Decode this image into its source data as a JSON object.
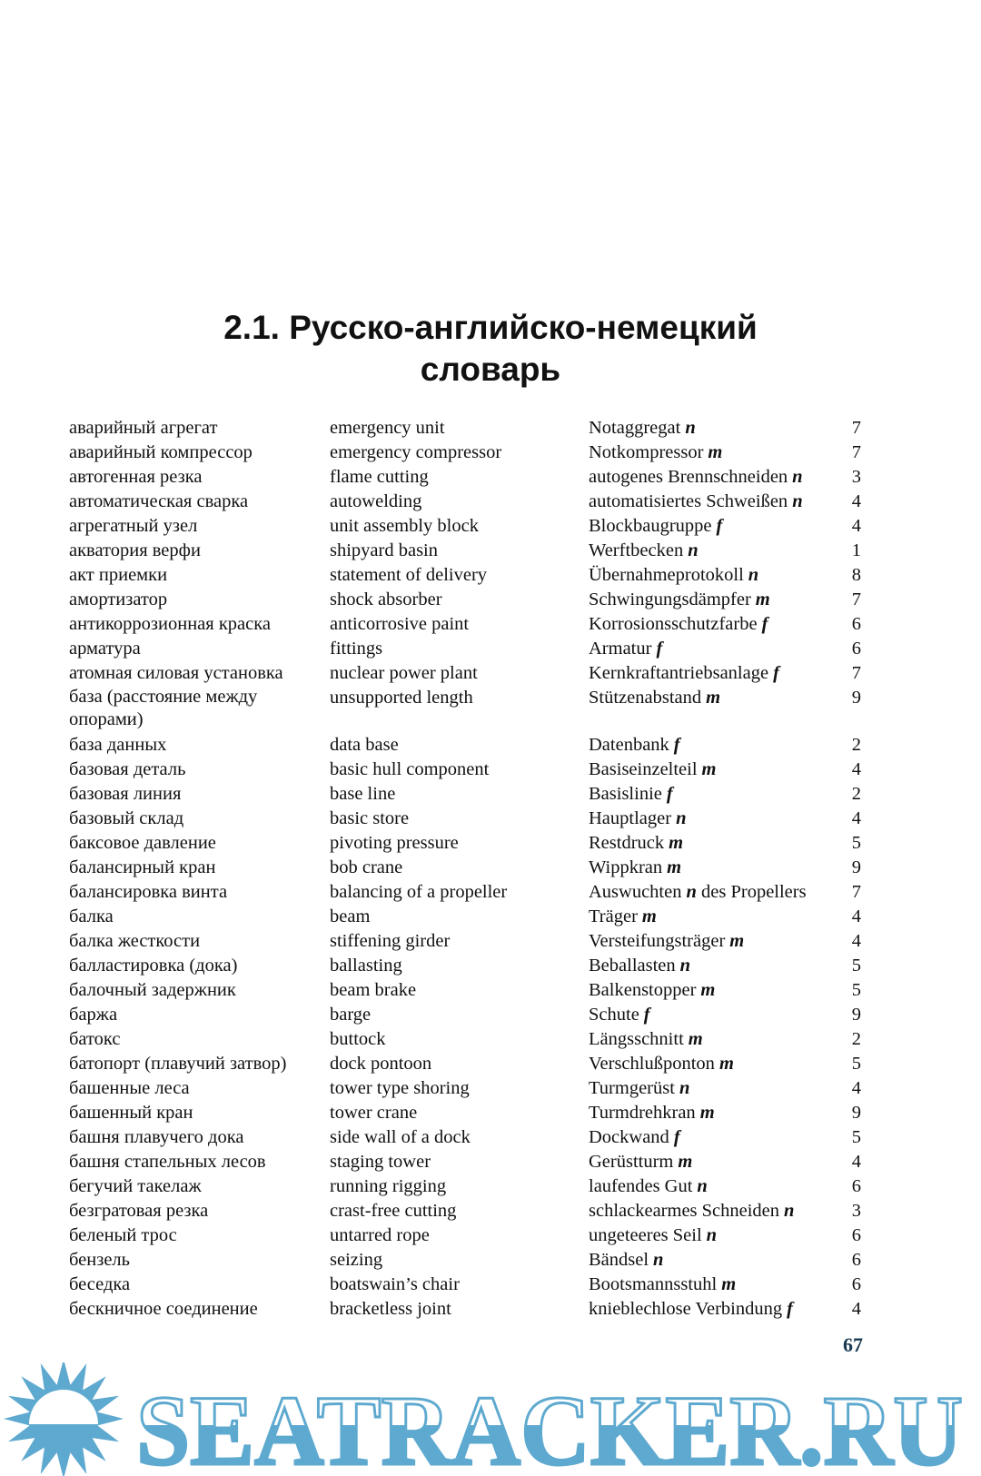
{
  "header": {
    "title_line1": "2.1. Русско-английско-немецкий",
    "title_line2": "словарь"
  },
  "entries": [
    {
      "ru": "аварийный агрегат",
      "en": "emergency unit",
      "de": "Notaggregat",
      "g": "n",
      "num": "7"
    },
    {
      "ru": "аварийный компрессор",
      "en": "emergency compressor",
      "de": "Notkompressor",
      "g": "m",
      "num": "7"
    },
    {
      "ru": "автогенная резка",
      "en": "flame cutting",
      "de": "autogenes Brennschneiden",
      "g": "n",
      "num": "3"
    },
    {
      "ru": "автоматическая сварка",
      "en": "autowelding",
      "de": "automatisiertes Schweißen",
      "g": "n",
      "num": "4"
    },
    {
      "ru": "агрегатный узел",
      "en": "unit assembly block",
      "de": "Blockbaugruppe",
      "g": "f",
      "num": "4"
    },
    {
      "ru": "акватория верфи",
      "en": "shipyard basin",
      "de": "Werftbecken",
      "g": "n",
      "num": "1"
    },
    {
      "ru": "акт приемки",
      "en": "statement of delivery",
      "de": "Übernahmeprotokoll",
      "g": "n",
      "num": "8"
    },
    {
      "ru": "амортизатор",
      "en": "shock absorber",
      "de": "Schwingungsdämpfer",
      "g": "m",
      "num": "7"
    },
    {
      "ru": "антикоррозионная краска",
      "en": "anticorrosive paint",
      "de": "Korrosionsschutzfarbe",
      "g": "f",
      "num": "6"
    },
    {
      "ru": "арматура",
      "en": "fittings",
      "de": "Armatur",
      "g": "f",
      "num": "6"
    },
    {
      "ru": "атомная силовая установка",
      "en": "nuclear power plant",
      "de": "Kernkraftantriebsanlage",
      "g": "f",
      "num": "7"
    },
    {
      "ru": "база (расстояние между опорами)",
      "en": "unsupported length",
      "de": "Stützenabstand",
      "g": "m",
      "num": "9"
    },
    {
      "ru": "база данных",
      "en": "data base",
      "de": "Datenbank",
      "g": "f",
      "num": "2"
    },
    {
      "ru": "базовая деталь",
      "en": "basic hull component",
      "de": "Basiseinzelteil",
      "g": "m",
      "num": "4"
    },
    {
      "ru": "базовая линия",
      "en": "base line",
      "de": "Basislinie",
      "g": "f",
      "num": "2"
    },
    {
      "ru": "базовый склад",
      "en": "basic store",
      "de": "Hauptlager",
      "g": "n",
      "num": "4"
    },
    {
      "ru": "баксовое давление",
      "en": "pivoting pressure",
      "de": "Restdruck",
      "g": "m",
      "num": "5"
    },
    {
      "ru": "балансирный кран",
      "en": "bob crane",
      "de": "Wippkran",
      "g": "m",
      "num": "9"
    },
    {
      "ru": "балансировка винта",
      "en": "balancing of a propeller",
      "de": "Auswuchten",
      "g": "n",
      "de_suffix": "des Propellers",
      "num": "7"
    },
    {
      "ru": "балка",
      "en": "beam",
      "de": "Träger",
      "g": "m",
      "num": "4"
    },
    {
      "ru": "балка жесткости",
      "en": "stiffening girder",
      "de": "Versteifungsträger",
      "g": "m",
      "num": "4"
    },
    {
      "ru": "балластировка (дока)",
      "en": "ballasting",
      "de": "Beballasten",
      "g": "n",
      "num": "5"
    },
    {
      "ru": "балочный задержник",
      "en": "beam brake",
      "de": "Balkenstopper",
      "g": "m",
      "num": "5"
    },
    {
      "ru": "баржа",
      "en": "barge",
      "de": "Schute",
      "g": "f",
      "num": "9"
    },
    {
      "ru": "батокс",
      "en": "buttock",
      "de": "Längsschnitt",
      "g": "m",
      "num": "2"
    },
    {
      "ru": "батопорт (плавучий затвор)",
      "en": "dock pontoon",
      "de": "Verschlußponton",
      "g": "m",
      "num": "5"
    },
    {
      "ru": "башенные леса",
      "en": "tower type shoring",
      "de": "Turmgerüst",
      "g": "n",
      "num": "4"
    },
    {
      "ru": "башенный кран",
      "en": "tower crane",
      "de": "Turmdrehkran",
      "g": "m",
      "num": "9"
    },
    {
      "ru": "башня плавучего дока",
      "en": "side wall of a dock",
      "de": "Dockwand",
      "g": "f",
      "num": "5"
    },
    {
      "ru": "башня стапельных лесов",
      "en": "staging tower",
      "de": "Gerüstturm",
      "g": "m",
      "num": "4"
    },
    {
      "ru": "бегучий такелаж",
      "en": "running rigging",
      "de": "laufendes Gut",
      "g": "n",
      "num": "6"
    },
    {
      "ru": "безгратовая резка",
      "en": "crast-free cutting",
      "de": "schlackearmes Schneiden",
      "g": "n",
      "num": "3"
    },
    {
      "ru": "беленый трос",
      "en": "untarred rope",
      "de": "ungeteeres Seil",
      "g": "n",
      "num": "6"
    },
    {
      "ru": "бензель",
      "en": "seizing",
      "de": "Bändsel",
      "g": "n",
      "num": "6"
    },
    {
      "ru": "беседка",
      "en": "boatswain’s chair",
      "de": "Bootsmannsstuhl",
      "g": "m",
      "num": "6"
    },
    {
      "ru": "бескничное соединение",
      "en": "bracketless joint",
      "de": "knieblechlose Verbindung",
      "g": "f",
      "num": "4"
    }
  ],
  "footer": {
    "page_number": "67"
  },
  "watermark": {
    "text": "SEATRACKER.RU",
    "color": "#5ea9cf"
  }
}
